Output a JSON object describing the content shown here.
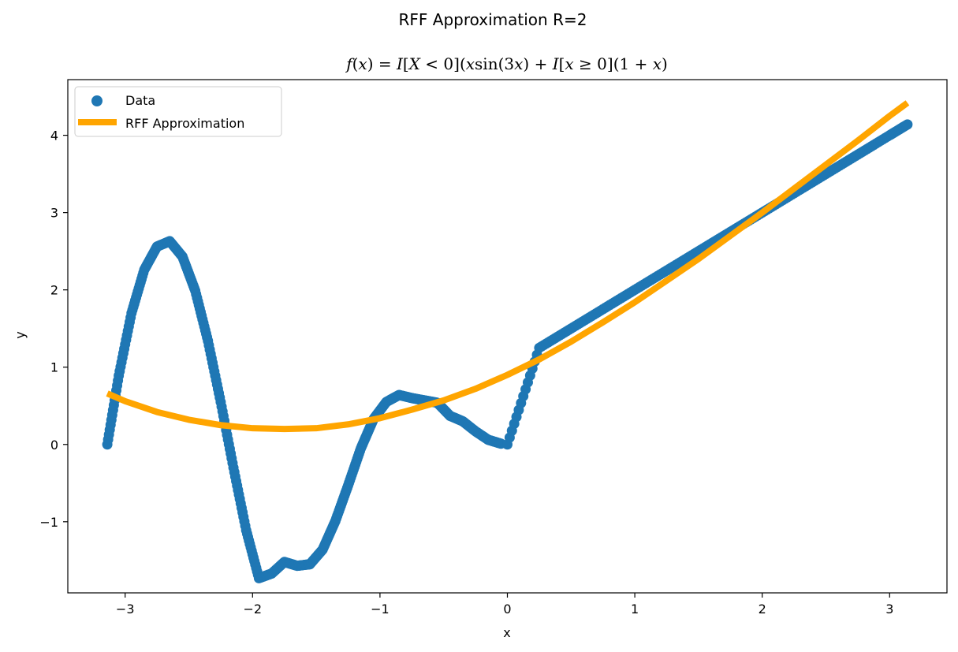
{
  "chart_data": {
    "type": "scatter",
    "suptitle": "RFF Approximation R=2",
    "title": "f(x) = I[X < 0](x sin(3x) + I[x ≥ 0](1 + x)",
    "xlabel": "x",
    "ylabel": "y",
    "xlim": [
      -3.45,
      3.45
    ],
    "ylim": [
      -1.92,
      4.72
    ],
    "xticks": [
      -3,
      -2,
      -1,
      0,
      1,
      2,
      3
    ],
    "xtick_labels": [
      "−3",
      "−2",
      "−1",
      "0",
      "1",
      "2",
      "3"
    ],
    "yticks": [
      -1,
      0,
      1,
      2,
      3,
      4
    ],
    "ytick_labels": [
      "−1",
      "0",
      "1",
      "2",
      "3",
      "4"
    ],
    "grid": false,
    "legend_position": "top-left",
    "series": [
      {
        "name": "Data",
        "kind": "scatter",
        "color": "#1f77b4",
        "x": [
          -3.14,
          -3.05,
          -2.95,
          -2.85,
          -2.75,
          -2.65,
          -2.55,
          -2.45,
          -2.35,
          -2.25,
          -2.15,
          -2.05,
          -1.95,
          -1.85,
          -1.75,
          -1.65,
          -1.55,
          -1.45,
          -1.35,
          -1.25,
          -1.15,
          -1.05,
          -0.95,
          -0.85,
          -0.75,
          -0.65,
          -0.55,
          -0.45,
          -0.35,
          -0.25,
          -0.15,
          -0.05,
          0.0,
          0.25,
          0.5,
          0.75,
          1.0,
          1.25,
          1.5,
          1.75,
          2.0,
          2.25,
          2.5,
          2.75,
          3.0,
          3.14
        ],
        "y": [
          0.0,
          0.89,
          1.7,
          2.26,
          2.56,
          2.63,
          2.43,
          1.99,
          1.34,
          0.55,
          -0.3,
          -1.11,
          -1.73,
          -1.67,
          -1.52,
          -1.57,
          -1.55,
          -1.36,
          -0.99,
          -0.53,
          -0.05,
          0.33,
          0.55,
          0.64,
          0.6,
          0.57,
          0.54,
          0.37,
          0.3,
          0.17,
          0.06,
          0.01,
          0.0,
          1.25,
          1.5,
          1.75,
          2.0,
          2.25,
          2.5,
          2.75,
          3.0,
          3.25,
          3.5,
          3.75,
          4.0,
          4.14
        ]
      },
      {
        "name": "RFF Approximation",
        "kind": "line",
        "color": "#ffa500",
        "x": [
          -3.14,
          -3.0,
          -2.75,
          -2.5,
          -2.25,
          -2.0,
          -1.75,
          -1.5,
          -1.25,
          -1.0,
          -0.75,
          -0.5,
          -0.25,
          0.0,
          0.25,
          0.5,
          0.75,
          1.0,
          1.25,
          1.5,
          1.75,
          2.0,
          2.25,
          2.5,
          2.75,
          3.0,
          3.14
        ],
        "y": [
          0.66,
          0.56,
          0.42,
          0.32,
          0.25,
          0.21,
          0.2,
          0.21,
          0.26,
          0.34,
          0.45,
          0.57,
          0.72,
          0.9,
          1.1,
          1.33,
          1.58,
          1.84,
          2.12,
          2.4,
          2.7,
          3.0,
          3.31,
          3.62,
          3.93,
          4.25,
          4.42
        ]
      }
    ]
  }
}
